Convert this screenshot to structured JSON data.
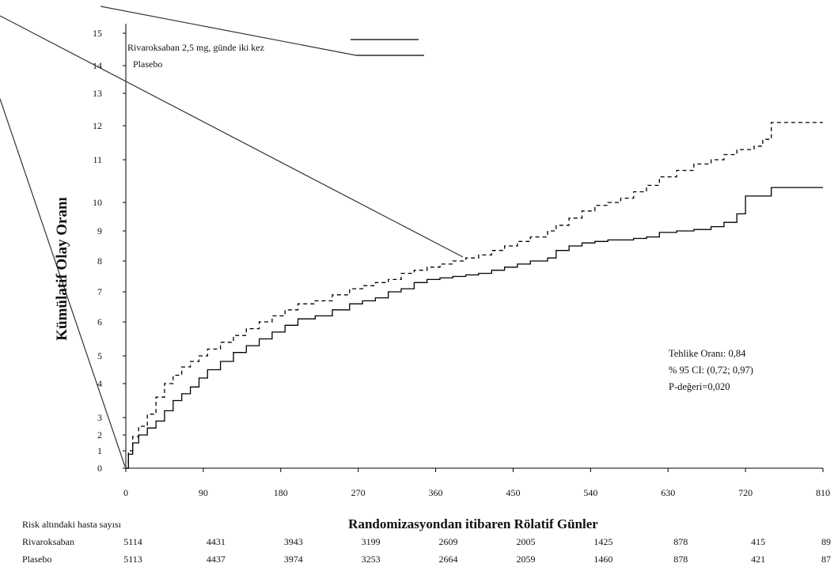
{
  "chart_data": {
    "type": "line",
    "step": true,
    "xlabel": "Randomizasyondan itibaren Rölatif Günler",
    "ylabel": "Kümülatif Olay Oranı",
    "xlim": [
      0,
      810
    ],
    "ylim": [
      0,
      15
    ],
    "x_ticks": [
      0,
      90,
      180,
      270,
      360,
      450,
      540,
      630,
      720,
      810
    ],
    "y_ticks": [
      0,
      1,
      2,
      3,
      4,
      5,
      6,
      7,
      8,
      9,
      10,
      11,
      12,
      13,
      14,
      15
    ],
    "grid": false,
    "legend_position": "top-left",
    "series": [
      {
        "name": "Rivaroksaban 2,5 mg, günde iki kez",
        "line_style": "solid",
        "color": "#000000",
        "x": [
          0,
          3,
          8,
          15,
          25,
          35,
          45,
          55,
          65,
          75,
          85,
          95,
          110,
          125,
          140,
          155,
          170,
          185,
          200,
          220,
          240,
          260,
          275,
          290,
          305,
          320,
          335,
          350,
          365,
          380,
          395,
          410,
          425,
          440,
          455,
          470,
          490,
          500,
          515,
          530,
          545,
          560,
          575,
          590,
          605,
          620,
          640,
          660,
          680,
          695,
          710,
          720,
          750,
          810
        ],
        "y": [
          0,
          0.8,
          1.5,
          2.0,
          2.4,
          2.8,
          3.2,
          3.5,
          3.7,
          3.9,
          4.2,
          4.5,
          4.8,
          5.1,
          5.3,
          5.5,
          5.7,
          5.9,
          6.1,
          6.2,
          6.4,
          6.6,
          6.7,
          6.8,
          7.0,
          7.1,
          7.3,
          7.4,
          7.45,
          7.5,
          7.55,
          7.6,
          7.7,
          7.8,
          7.9,
          8.0,
          8.1,
          8.35,
          8.5,
          8.6,
          8.65,
          8.7,
          8.7,
          8.75,
          8.8,
          8.95,
          9.0,
          9.05,
          9.15,
          9.3,
          9.6,
          10.15,
          10.35,
          10.35
        ]
      },
      {
        "name": "Plasebo",
        "line_style": "dashed",
        "color": "#000000",
        "x": [
          0,
          3,
          8,
          15,
          25,
          35,
          45,
          55,
          65,
          75,
          85,
          95,
          110,
          125,
          140,
          155,
          170,
          185,
          200,
          220,
          240,
          260,
          275,
          290,
          305,
          320,
          335,
          350,
          365,
          380,
          395,
          410,
          425,
          440,
          455,
          470,
          490,
          500,
          515,
          530,
          545,
          560,
          575,
          590,
          605,
          620,
          640,
          660,
          680,
          695,
          710,
          720,
          730,
          740,
          750,
          810
        ],
        "y": [
          0,
          1.0,
          1.9,
          2.5,
          3.1,
          3.6,
          4.0,
          4.3,
          4.6,
          4.8,
          5.0,
          5.2,
          5.4,
          5.6,
          5.8,
          6.0,
          6.2,
          6.4,
          6.6,
          6.7,
          6.9,
          7.1,
          7.2,
          7.3,
          7.4,
          7.6,
          7.7,
          7.8,
          7.9,
          8.0,
          8.1,
          8.2,
          8.35,
          8.5,
          8.65,
          8.8,
          9.0,
          9.2,
          9.45,
          9.7,
          9.9,
          10.0,
          10.1,
          10.25,
          10.4,
          10.6,
          10.75,
          10.9,
          11.0,
          11.15,
          11.3,
          11.3,
          11.4,
          11.6,
          12.1,
          12.1
        ]
      }
    ],
    "annotations": {
      "stats": [
        "Tehlike Oranı: 0,84",
        "% 95 CI: (0,72; 0,97)",
        "P-değeri=0,020"
      ]
    },
    "risk_table": {
      "title": "Risk altındaki hasta sayısı",
      "rows": [
        {
          "label": "Rivaroksaban",
          "values": [
            "5114",
            "4431",
            "3943",
            "3199",
            "2609",
            "2005",
            "1425",
            "878",
            "415",
            "89"
          ]
        },
        {
          "label": "Plasebo",
          "values": [
            "5113",
            "4437",
            "3974",
            "3253",
            "2664",
            "2059",
            "1460",
            "878",
            "421",
            "87"
          ]
        }
      ]
    }
  }
}
